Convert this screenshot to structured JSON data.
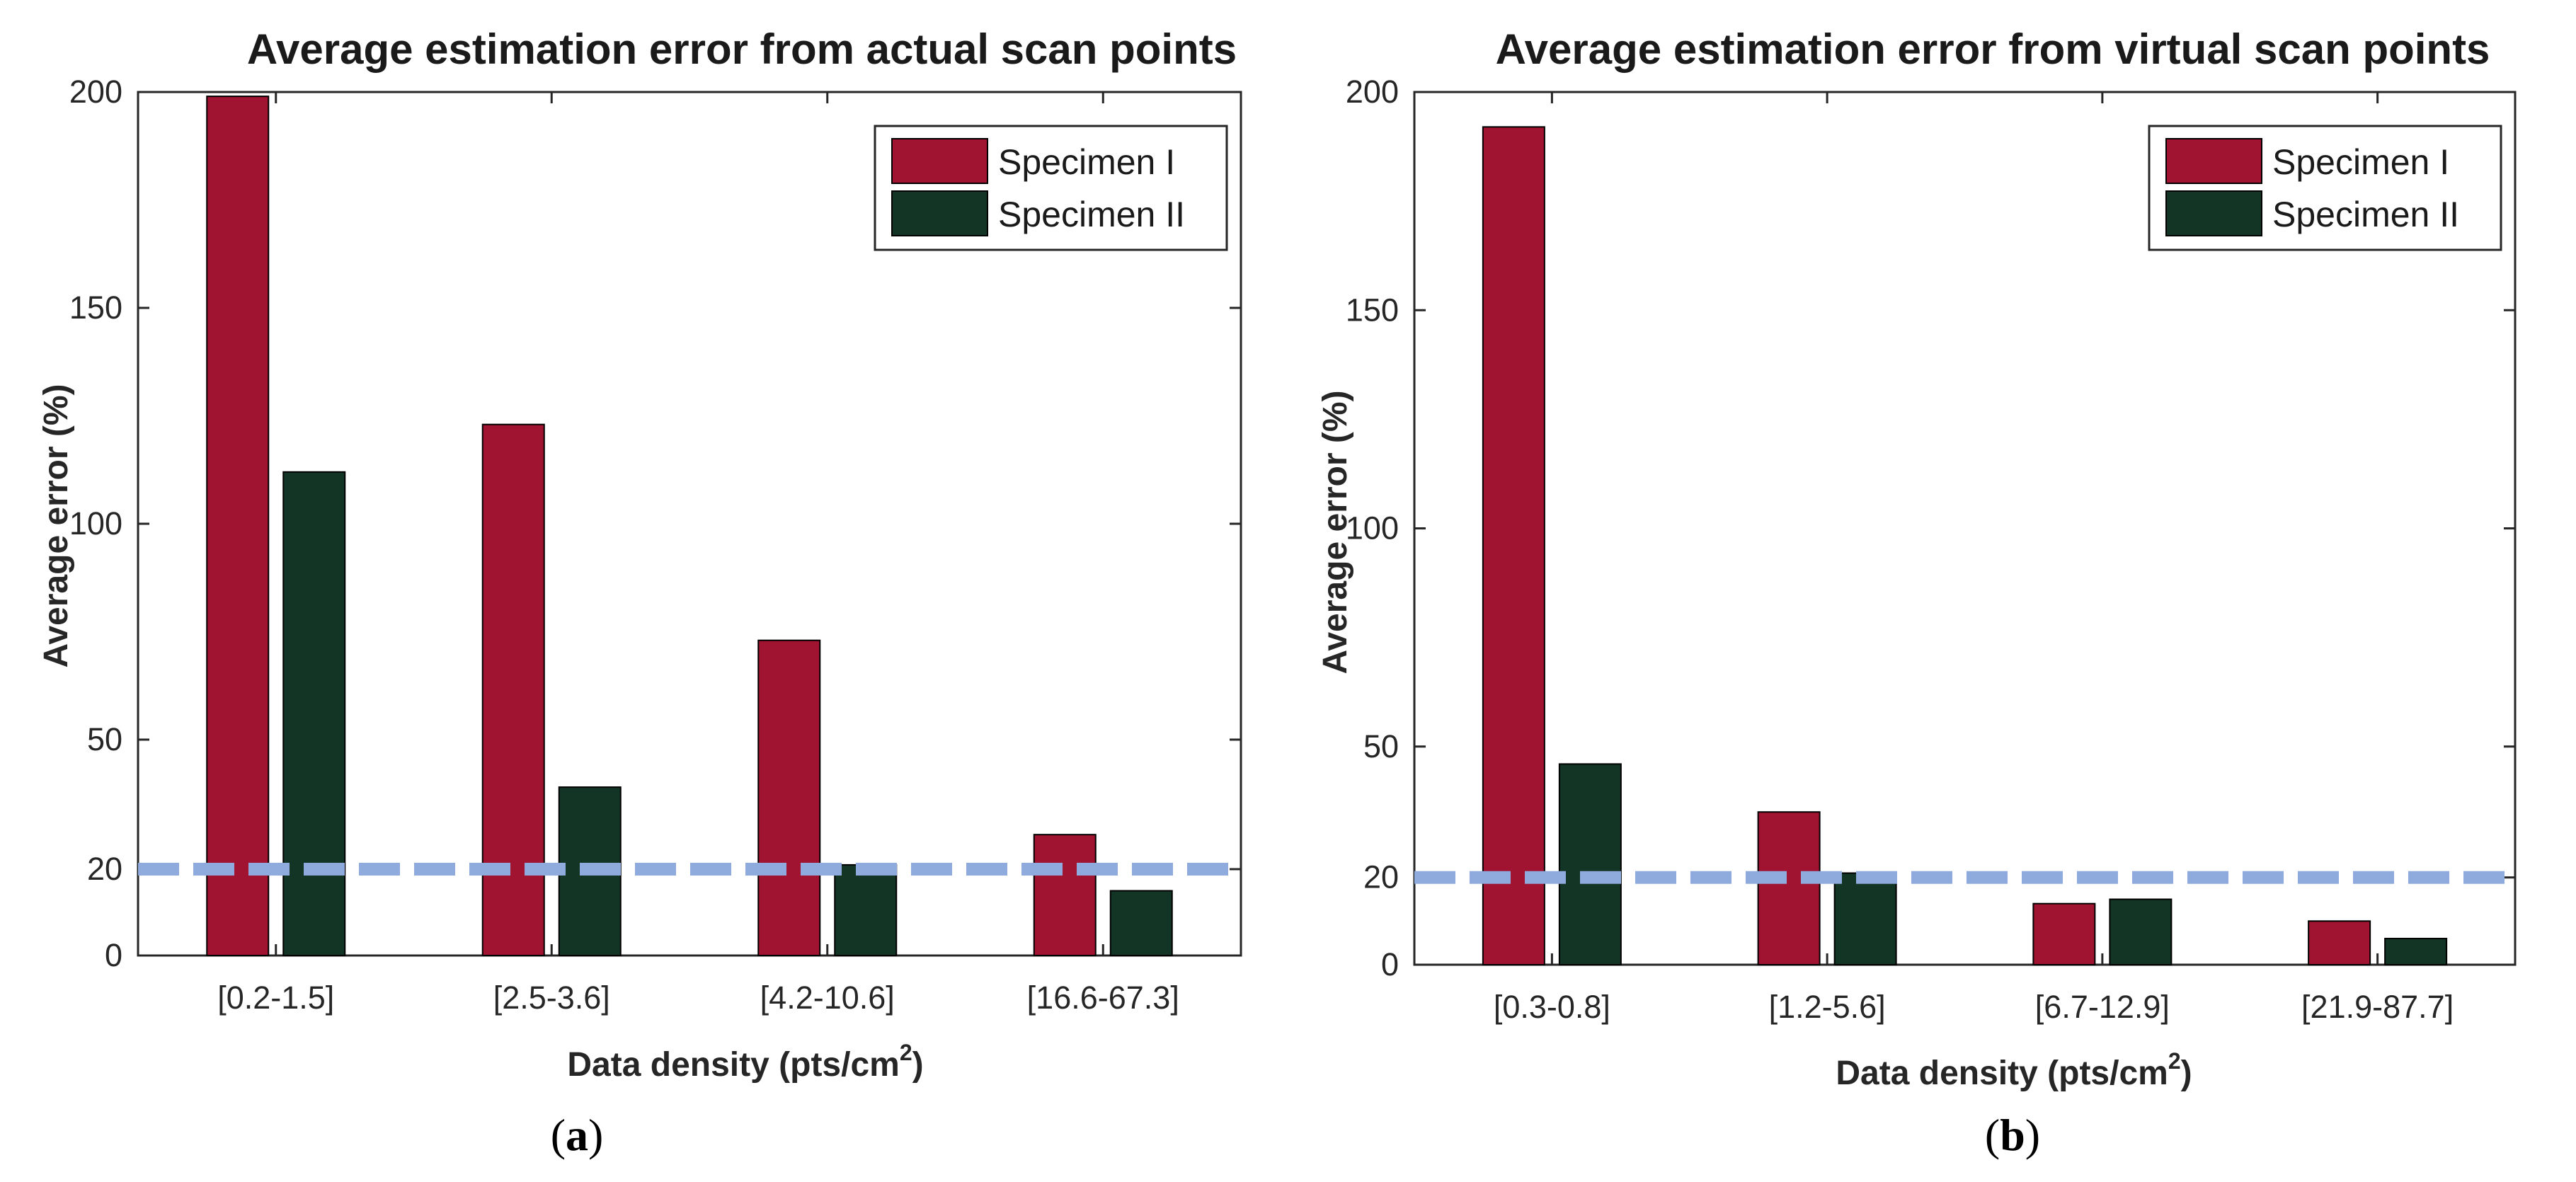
{
  "figure": {
    "reference_line": {
      "value": 20,
      "color": "#8faadc"
    },
    "colors": {
      "specimen_1": "#a11431",
      "specimen_2": "#123525"
    }
  },
  "chart_data": [
    {
      "type": "bar",
      "panel_label": "a",
      "title": "Average estimation error from actual scan points",
      "xlabel": "Data density (pts/cm",
      "xlabel_sup": "2",
      "xlabel_end": ")",
      "ylabel": "Average error (%)",
      "ylim": [
        0,
        200
      ],
      "yticks": [
        0,
        20,
        50,
        100,
        150,
        200
      ],
      "grid": false,
      "legend_position": "top-right",
      "categories": [
        "[0.2-1.5]",
        "[2.5-3.6]",
        "[4.2-10.6]",
        "[16.6-67.3]"
      ],
      "series": [
        {
          "name": "Specimen I",
          "color": "#a11431",
          "values": [
            199,
            123,
            73,
            28
          ]
        },
        {
          "name": "Specimen II",
          "color": "#123525",
          "values": [
            112,
            39,
            21,
            15
          ]
        }
      ]
    },
    {
      "type": "bar",
      "panel_label": "b",
      "title": "Average estimation error from virtual scan points",
      "xlabel": "Data density (pts/cm",
      "xlabel_sup": "2",
      "xlabel_end": ")",
      "ylabel": "Average error (%)",
      "ylim": [
        0,
        200
      ],
      "yticks": [
        0,
        20,
        50,
        100,
        150,
        200
      ],
      "grid": false,
      "legend_position": "top-right",
      "categories": [
        "[0.3-0.8]",
        "[1.2-5.6]",
        "[6.7-12.9]",
        "[21.9-87.7]"
      ],
      "series": [
        {
          "name": "Specimen I",
          "color": "#a11431",
          "values": [
            192,
            35,
            14,
            10
          ]
        },
        {
          "name": "Specimen II",
          "color": "#123525",
          "values": [
            46,
            21,
            15,
            6
          ]
        }
      ]
    }
  ]
}
